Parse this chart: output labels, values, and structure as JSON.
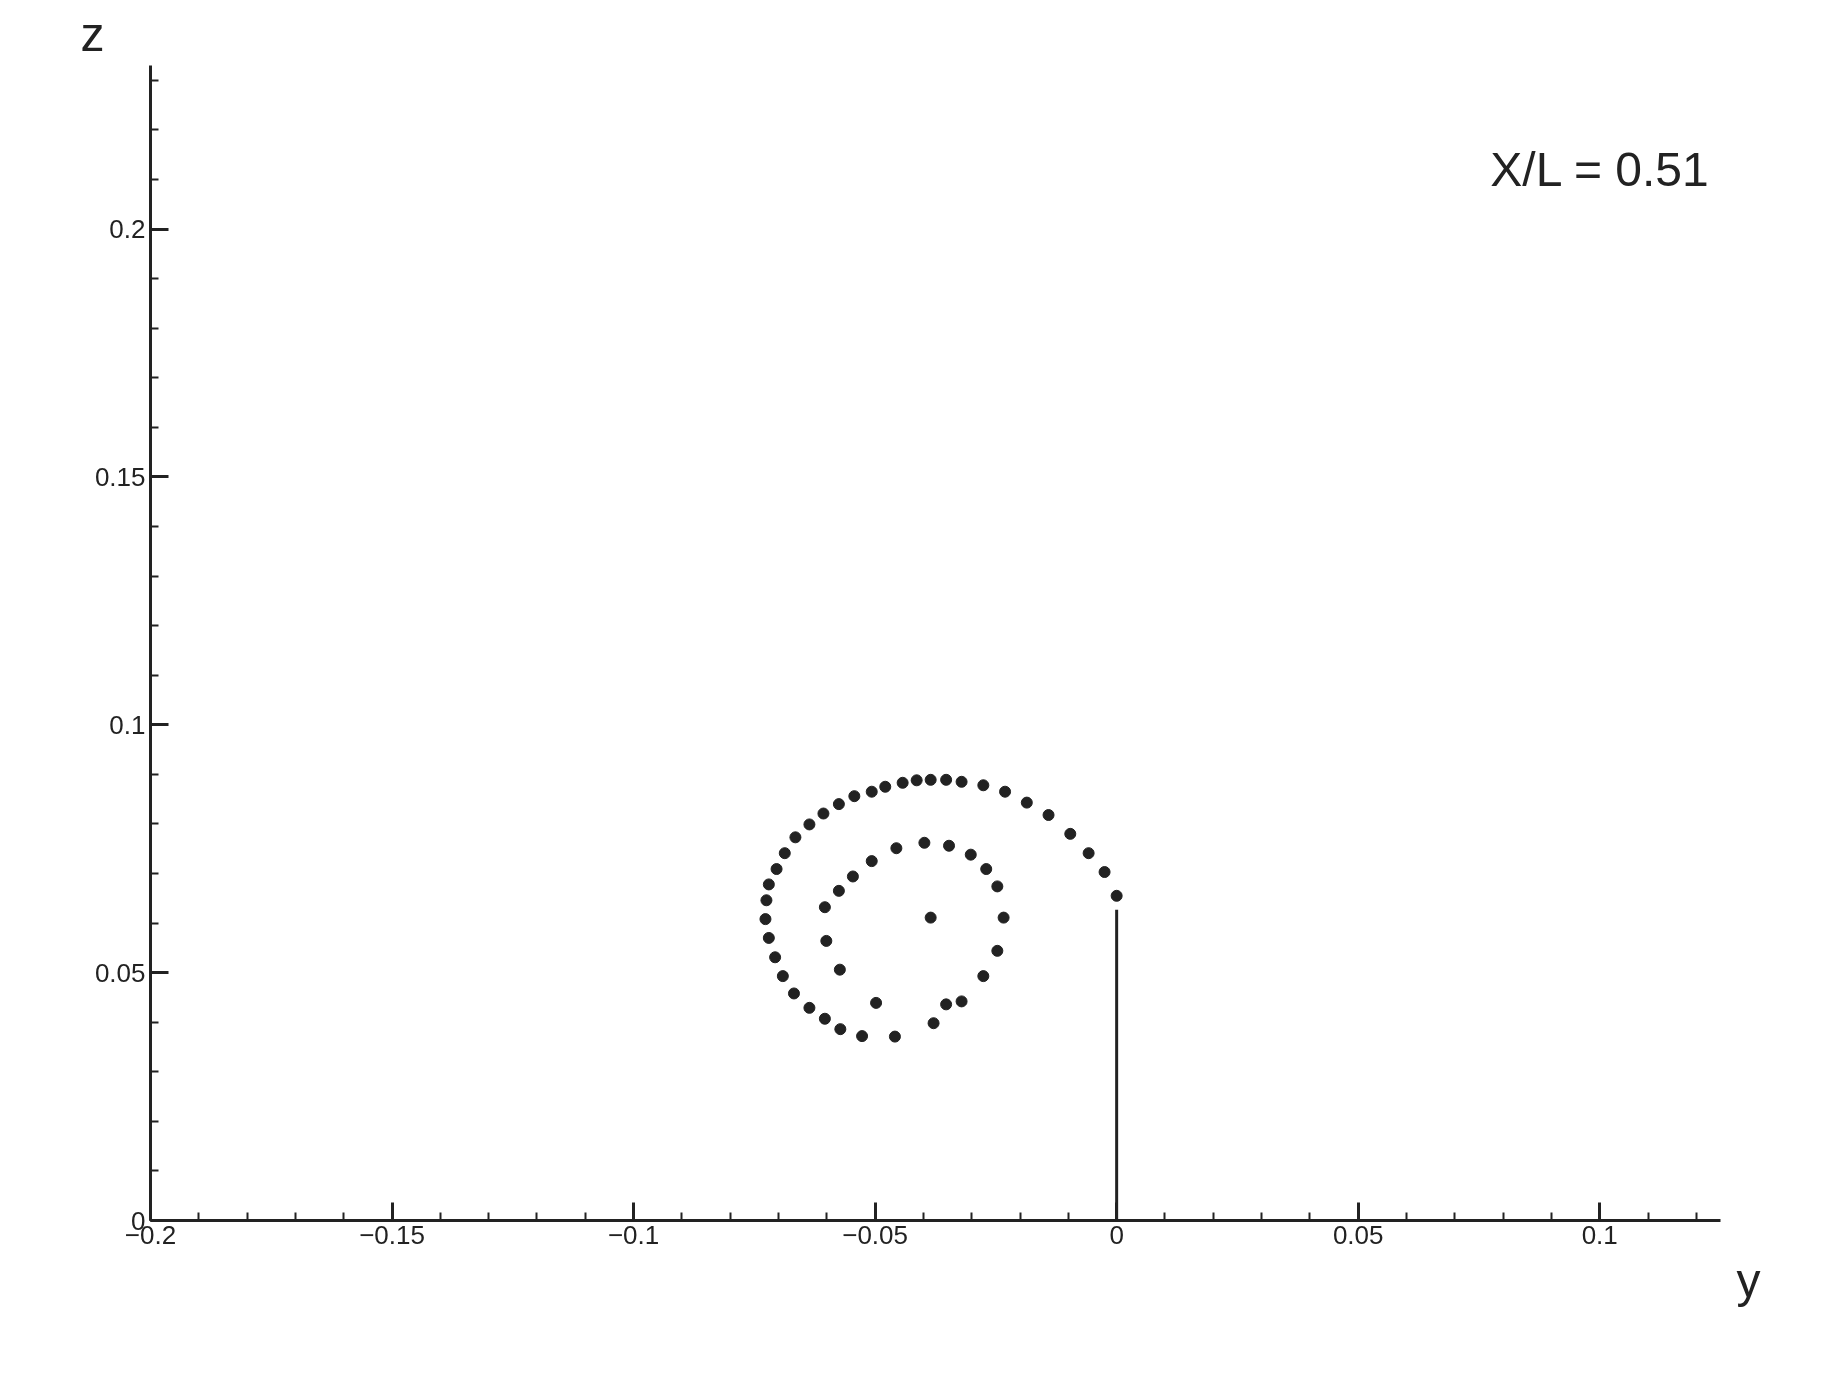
{
  "chart_data": {
    "type": "scatter",
    "xlabel": "y",
    "ylabel": "z",
    "annotations": [
      "X/L = 0.51"
    ],
    "xlim": [
      -0.2,
      0.125
    ],
    "ylim": [
      0,
      0.233
    ],
    "xticks": [
      -0.2,
      -0.15,
      -0.1,
      -0.05,
      0,
      0.05,
      0.1
    ],
    "yticks": [
      0,
      0.05,
      0.1,
      0.15,
      0.2
    ],
    "grid": false,
    "series": [
      {
        "marker": "circle",
        "color": "#222222",
        "x": [
          0.0,
          -0.0025,
          -0.0058,
          -0.0096,
          -0.0141,
          -0.0186,
          -0.0231,
          -0.0276,
          -0.0321,
          -0.0353,
          -0.0385,
          -0.0414,
          -0.0443,
          -0.0479,
          -0.0507,
          -0.0543,
          -0.0575,
          -0.0607,
          -0.0636,
          -0.0665,
          -0.0687,
          -0.0704,
          -0.072,
          -0.0725,
          -0.0727,
          -0.072,
          -0.0707,
          -0.0691,
          -0.0668,
          -0.0636,
          -0.0604,
          -0.0572,
          -0.0527,
          -0.0459,
          -0.0379,
          -0.0353,
          -0.0321,
          -0.0276,
          -0.0247,
          -0.0234,
          -0.0247,
          -0.027,
          -0.0302,
          -0.0347,
          -0.0398,
          -0.0456,
          -0.0507,
          -0.0546,
          -0.0575,
          -0.0604,
          -0.0601,
          -0.0573,
          -0.0498,
          -0.0385
        ],
        "values": [
          0.0655,
          0.0703,
          0.0741,
          0.078,
          0.0818,
          0.0843,
          0.0865,
          0.0878,
          0.0885,
          0.0889,
          0.0889,
          0.0888,
          0.0883,
          0.0875,
          0.0865,
          0.0856,
          0.084,
          0.0821,
          0.0799,
          0.0773,
          0.0741,
          0.0709,
          0.0678,
          0.0646,
          0.0608,
          0.057,
          0.0531,
          0.0493,
          0.0458,
          0.0429,
          0.0407,
          0.0386,
          0.0372,
          0.0371,
          0.0398,
          0.0436,
          0.0442,
          0.0493,
          0.0544,
          0.0611,
          0.0674,
          0.0709,
          0.0738,
          0.0756,
          0.0762,
          0.0751,
          0.0725,
          0.0694,
          0.0665,
          0.0632,
          0.0564,
          0.0506,
          0.0439,
          0.0611
        ]
      },
      {
        "type": "line",
        "color": "#222222",
        "line_style": "solid",
        "x": [
          0,
          0
        ],
        "values": [
          0,
          0.0627
        ]
      }
    ]
  }
}
